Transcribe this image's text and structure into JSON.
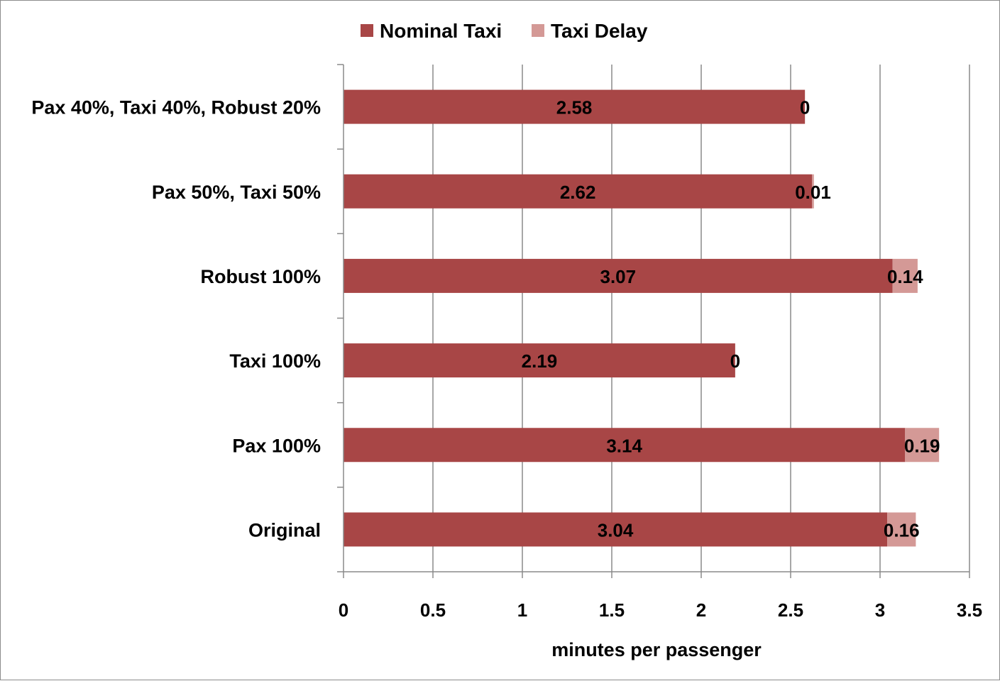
{
  "chart_data": {
    "type": "bar",
    "orientation": "horizontal",
    "stacked": true,
    "categories": [
      "Original",
      "Pax 100%",
      "Taxi 100%",
      "Robust 100%",
      "Pax 50%, Taxi 50%",
      "Pax 40%, Taxi 40%, Robust 20%"
    ],
    "series": [
      {
        "name": "Nominal Taxi",
        "color": "#a84646",
        "values": [
          3.04,
          3.14,
          2.19,
          3.07,
          2.62,
          2.58
        ]
      },
      {
        "name": "Taxi Delay",
        "color": "#d49996",
        "values": [
          0.16,
          0.19,
          0,
          0.14,
          0.01,
          0
        ]
      }
    ],
    "xlabel": "minutes per passenger",
    "xlim": [
      0,
      3.5
    ],
    "xticks": [
      0,
      0.5,
      1,
      1.5,
      2,
      2.5,
      3,
      3.5
    ],
    "xtick_labels": [
      "0",
      "0.5",
      "1",
      "1.5",
      "2",
      "2.5",
      "3",
      "3.5"
    ],
    "grid": "vertical",
    "legend": "top-center",
    "data_labels": true
  }
}
